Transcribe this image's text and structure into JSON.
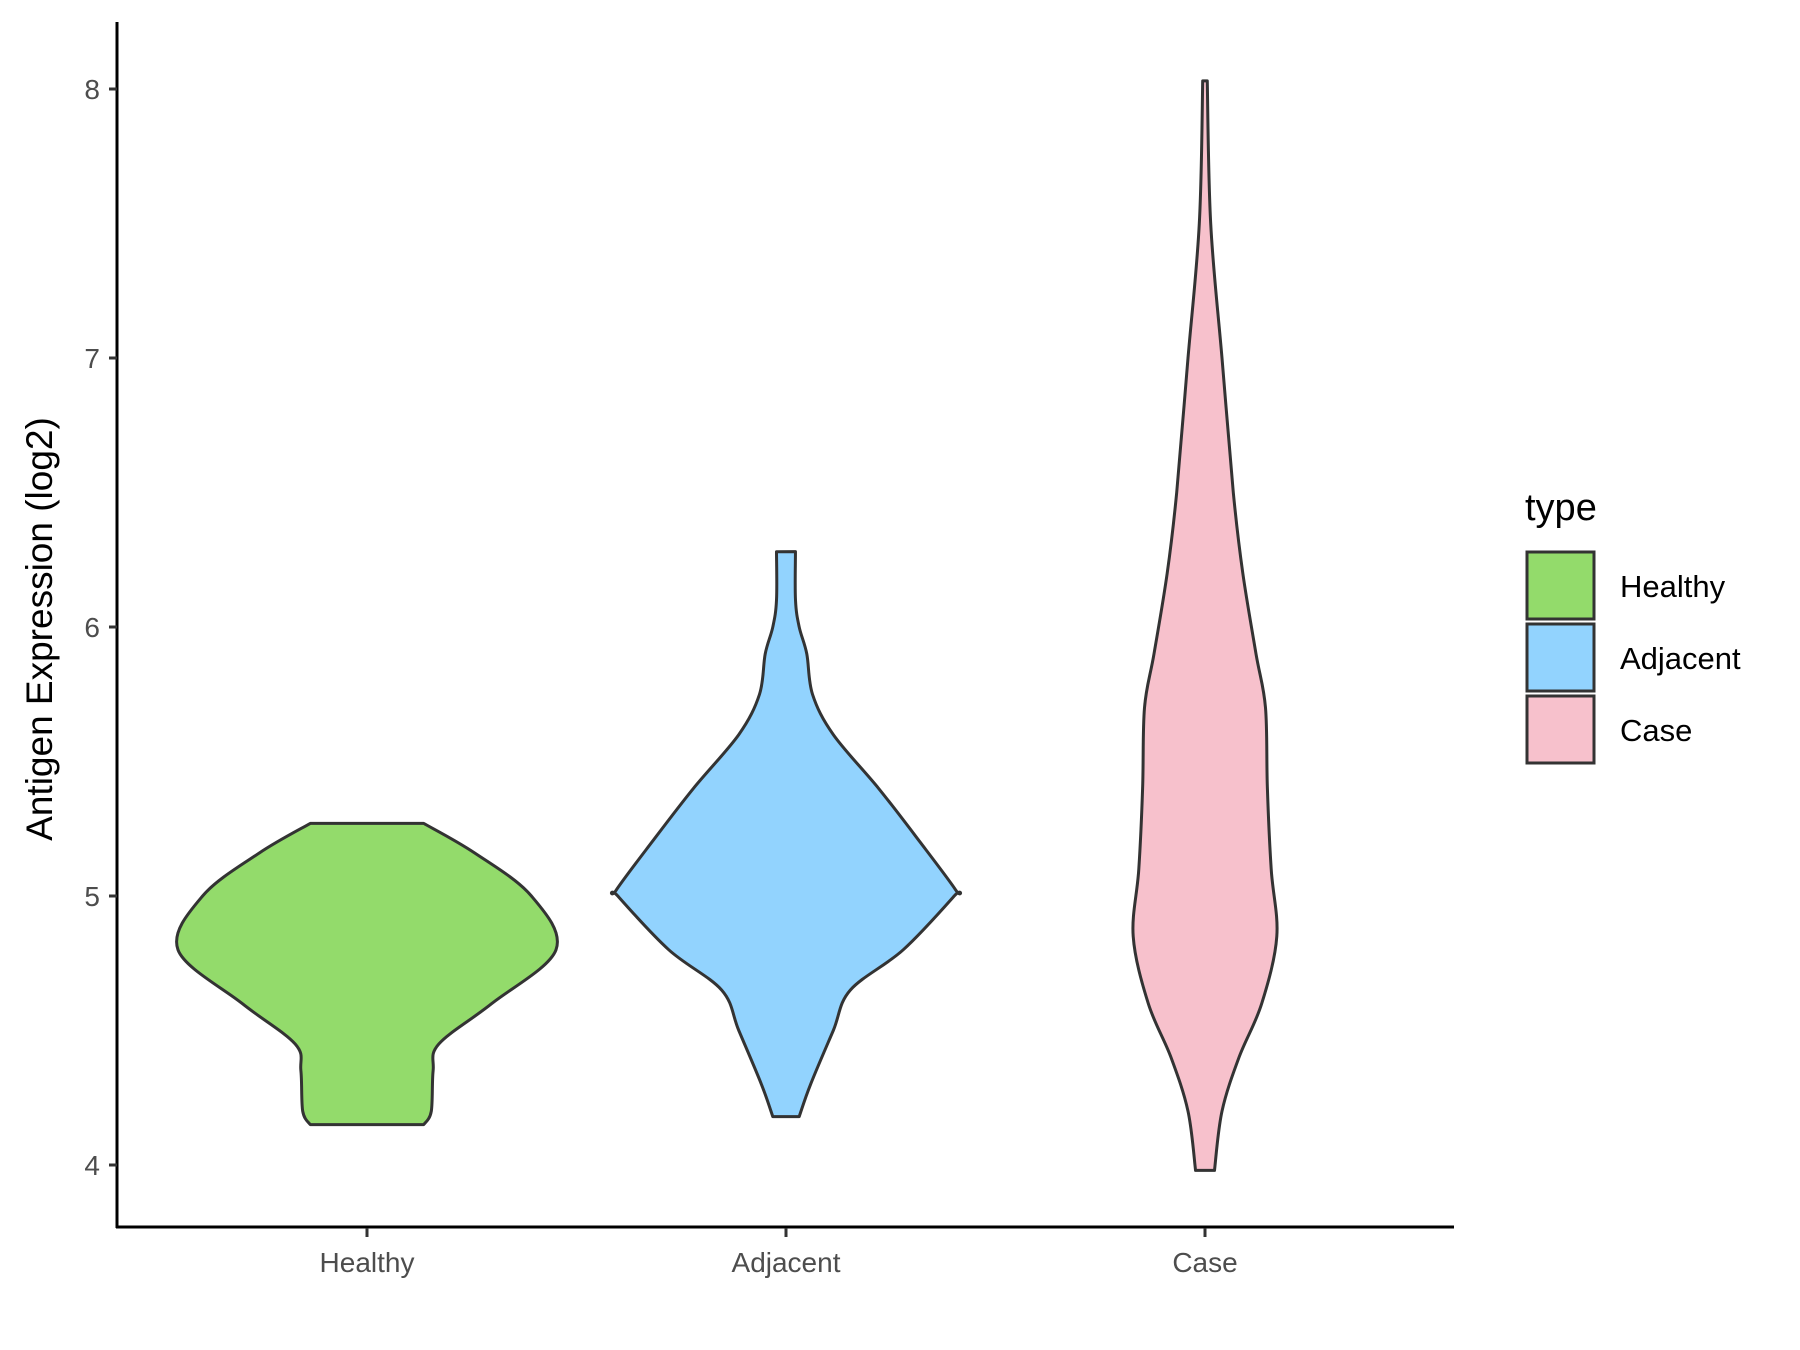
{
  "chart_data": {
    "type": "violin",
    "title": "",
    "xlabel": "",
    "ylabel": "Antigen Expression (log2)",
    "categories": [
      "Healthy",
      "Adjacent",
      "Case"
    ],
    "ylim": [
      3.77,
      8.25
    ],
    "yticks": [
      "4",
      "5",
      "6",
      "7",
      "8"
    ],
    "grid": false,
    "legend": {
      "title": "type",
      "position": "right",
      "entries": [
        "Healthy",
        "Adjacent",
        "Case"
      ]
    },
    "colors": {
      "Healthy": "#93DB6B",
      "Adjacent": "#92D3FE",
      "Case": "#F7C1CC",
      "outline": "#333333"
    },
    "series": [
      {
        "name": "Healthy",
        "min": 4.15,
        "max": 5.27,
        "profile": [
          [
            4.15,
            0.3
          ],
          [
            4.2,
            0.34
          ],
          [
            4.35,
            0.35
          ],
          [
            4.45,
            0.38
          ],
          [
            4.6,
            0.66
          ],
          [
            4.8,
            1.0
          ],
          [
            5.0,
            0.87
          ],
          [
            5.16,
            0.57
          ],
          [
            5.27,
            0.3
          ]
        ]
      },
      {
        "name": "Adjacent",
        "min": 4.18,
        "max": 6.28,
        "profile": [
          [
            4.18,
            0.07
          ],
          [
            4.3,
            0.13
          ],
          [
            4.5,
            0.25
          ],
          [
            4.65,
            0.34
          ],
          [
            4.8,
            0.62
          ],
          [
            5.0,
            0.89
          ],
          [
            5.02,
            0.9
          ],
          [
            5.2,
            0.71
          ],
          [
            5.4,
            0.49
          ],
          [
            5.6,
            0.25
          ],
          [
            5.75,
            0.14
          ],
          [
            5.9,
            0.11
          ],
          [
            6.0,
            0.07
          ],
          [
            6.1,
            0.05
          ],
          [
            6.28,
            0.05
          ]
        ]
      },
      {
        "name": "Case",
        "min": 3.98,
        "max": 8.03,
        "profile": [
          [
            3.98,
            0.05
          ],
          [
            4.2,
            0.09
          ],
          [
            4.4,
            0.18
          ],
          [
            4.6,
            0.3
          ],
          [
            4.85,
            0.38
          ],
          [
            5.1,
            0.35
          ],
          [
            5.4,
            0.33
          ],
          [
            5.7,
            0.32
          ],
          [
            5.9,
            0.27
          ],
          [
            6.2,
            0.2
          ],
          [
            6.5,
            0.15
          ],
          [
            7.0,
            0.09
          ],
          [
            7.5,
            0.03
          ],
          [
            8.03,
            0.012
          ]
        ]
      }
    ]
  }
}
